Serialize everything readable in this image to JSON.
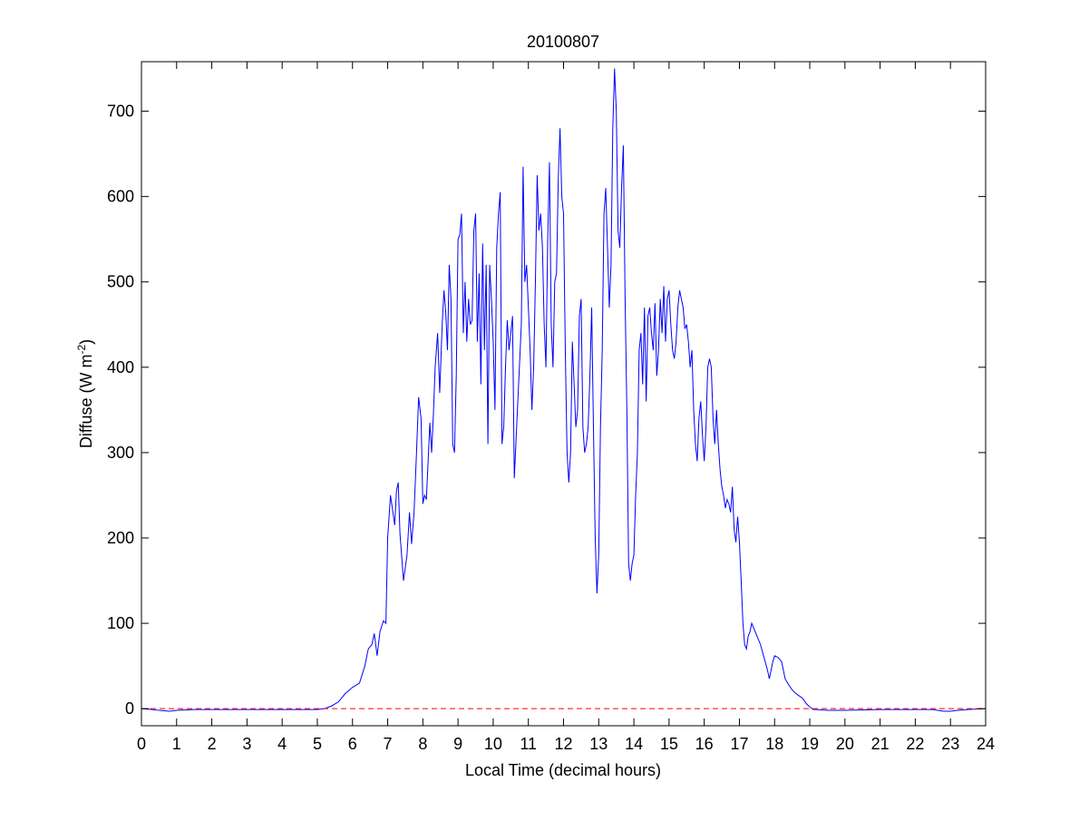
{
  "chart_data": {
    "type": "line",
    "title": "20100807",
    "xlabel": "Local Time (decimal hours)",
    "ylabel": "Diffuse (W m^-2)",
    "ylabel_parts": {
      "main": "Diffuse (W m",
      "sup": "-2",
      "close": ")"
    },
    "xlim": [
      0,
      24
    ],
    "ylim": [
      -20,
      758
    ],
    "xticks": [
      0,
      1,
      2,
      3,
      4,
      5,
      6,
      7,
      8,
      9,
      10,
      11,
      12,
      13,
      14,
      15,
      16,
      17,
      18,
      19,
      20,
      21,
      22,
      23,
      24
    ],
    "yticks": [
      0,
      100,
      200,
      300,
      400,
      500,
      600,
      700
    ],
    "grid": false,
    "series": [
      {
        "color": "#0000ff",
        "style": "solid",
        "points": [
          [
            0.0,
            0
          ],
          [
            0.3,
            -1
          ],
          [
            0.5,
            -2
          ],
          [
            0.8,
            -3
          ],
          [
            1.0,
            -2
          ],
          [
            1.5,
            -1
          ],
          [
            2.0,
            -1
          ],
          [
            3.0,
            -1
          ],
          [
            4.0,
            -1
          ],
          [
            5.0,
            -1
          ],
          [
            5.2,
            0
          ],
          [
            5.4,
            3
          ],
          [
            5.6,
            8
          ],
          [
            5.8,
            18
          ],
          [
            6.0,
            25
          ],
          [
            6.2,
            30
          ],
          [
            6.35,
            50
          ],
          [
            6.45,
            70
          ],
          [
            6.55,
            75
          ],
          [
            6.62,
            88
          ],
          [
            6.7,
            62
          ],
          [
            6.78,
            90
          ],
          [
            6.88,
            103
          ],
          [
            6.95,
            100
          ],
          [
            7.0,
            200
          ],
          [
            7.08,
            250
          ],
          [
            7.15,
            230
          ],
          [
            7.2,
            215
          ],
          [
            7.25,
            255
          ],
          [
            7.3,
            265
          ],
          [
            7.35,
            205
          ],
          [
            7.45,
            150
          ],
          [
            7.55,
            180
          ],
          [
            7.62,
            230
          ],
          [
            7.68,
            193
          ],
          [
            7.75,
            230
          ],
          [
            7.82,
            300
          ],
          [
            7.88,
            365
          ],
          [
            7.95,
            340
          ],
          [
            8.0,
            240
          ],
          [
            8.05,
            250
          ],
          [
            8.1,
            245
          ],
          [
            8.15,
            290
          ],
          [
            8.2,
            335
          ],
          [
            8.25,
            300
          ],
          [
            8.3,
            345
          ],
          [
            8.35,
            400
          ],
          [
            8.42,
            440
          ],
          [
            8.48,
            370
          ],
          [
            8.55,
            450
          ],
          [
            8.6,
            490
          ],
          [
            8.65,
            465
          ],
          [
            8.7,
            420
          ],
          [
            8.75,
            520
          ],
          [
            8.8,
            480
          ],
          [
            8.85,
            310
          ],
          [
            8.9,
            300
          ],
          [
            8.95,
            390
          ],
          [
            9.0,
            550
          ],
          [
            9.05,
            555
          ],
          [
            9.1,
            580
          ],
          [
            9.15,
            440
          ],
          [
            9.2,
            500
          ],
          [
            9.25,
            430
          ],
          [
            9.3,
            480
          ],
          [
            9.35,
            450
          ],
          [
            9.4,
            455
          ],
          [
            9.45,
            560
          ],
          [
            9.5,
            580
          ],
          [
            9.55,
            430
          ],
          [
            9.6,
            510
          ],
          [
            9.65,
            380
          ],
          [
            9.7,
            545
          ],
          [
            9.75,
            420
          ],
          [
            9.8,
            520
          ],
          [
            9.85,
            310
          ],
          [
            9.9,
            520
          ],
          [
            9.95,
            480
          ],
          [
            10.0,
            430
          ],
          [
            10.05,
            350
          ],
          [
            10.1,
            540
          ],
          [
            10.15,
            580
          ],
          [
            10.2,
            605
          ],
          [
            10.25,
            310
          ],
          [
            10.3,
            330
          ],
          [
            10.35,
            400
          ],
          [
            10.4,
            455
          ],
          [
            10.45,
            420
          ],
          [
            10.55,
            460
          ],
          [
            10.6,
            270
          ],
          [
            10.7,
            360
          ],
          [
            10.8,
            450
          ],
          [
            10.85,
            635
          ],
          [
            10.9,
            500
          ],
          [
            10.95,
            520
          ],
          [
            11.0,
            470
          ],
          [
            11.05,
            420
          ],
          [
            11.1,
            350
          ],
          [
            11.15,
            400
          ],
          [
            11.2,
            500
          ],
          [
            11.25,
            625
          ],
          [
            11.3,
            560
          ],
          [
            11.35,
            580
          ],
          [
            11.4,
            540
          ],
          [
            11.45,
            450
          ],
          [
            11.5,
            400
          ],
          [
            11.55,
            550
          ],
          [
            11.6,
            640
          ],
          [
            11.65,
            450
          ],
          [
            11.7,
            400
          ],
          [
            11.75,
            500
          ],
          [
            11.8,
            510
          ],
          [
            11.85,
            620
          ],
          [
            11.9,
            680
          ],
          [
            11.95,
            600
          ],
          [
            12.0,
            580
          ],
          [
            12.05,
            420
          ],
          [
            12.1,
            300
          ],
          [
            12.15,
            265
          ],
          [
            12.2,
            300
          ],
          [
            12.25,
            430
          ],
          [
            12.3,
            380
          ],
          [
            12.35,
            330
          ],
          [
            12.4,
            350
          ],
          [
            12.45,
            460
          ],
          [
            12.5,
            480
          ],
          [
            12.55,
            330
          ],
          [
            12.6,
            300
          ],
          [
            12.65,
            310
          ],
          [
            12.7,
            330
          ],
          [
            12.75,
            390
          ],
          [
            12.8,
            470
          ],
          [
            12.85,
            330
          ],
          [
            12.9,
            200
          ],
          [
            12.95,
            135
          ],
          [
            13.0,
            180
          ],
          [
            13.05,
            330
          ],
          [
            13.1,
            420
          ],
          [
            13.15,
            580
          ],
          [
            13.2,
            610
          ],
          [
            13.25,
            540
          ],
          [
            13.3,
            470
          ],
          [
            13.35,
            520
          ],
          [
            13.4,
            680
          ],
          [
            13.45,
            750
          ],
          [
            13.5,
            700
          ],
          [
            13.55,
            560
          ],
          [
            13.6,
            540
          ],
          [
            13.65,
            610
          ],
          [
            13.7,
            660
          ],
          [
            13.75,
            480
          ],
          [
            13.8,
            350
          ],
          [
            13.85,
            170
          ],
          [
            13.9,
            150
          ],
          [
            13.95,
            170
          ],
          [
            14.0,
            180
          ],
          [
            14.05,
            250
          ],
          [
            14.1,
            300
          ],
          [
            14.15,
            420
          ],
          [
            14.2,
            440
          ],
          [
            14.25,
            380
          ],
          [
            14.3,
            470
          ],
          [
            14.35,
            360
          ],
          [
            14.4,
            460
          ],
          [
            14.45,
            470
          ],
          [
            14.5,
            440
          ],
          [
            14.55,
            420
          ],
          [
            14.6,
            475
          ],
          [
            14.65,
            390
          ],
          [
            14.7,
            420
          ],
          [
            14.75,
            480
          ],
          [
            14.8,
            440
          ],
          [
            14.85,
            495
          ],
          [
            14.9,
            430
          ],
          [
            14.95,
            480
          ],
          [
            15.0,
            490
          ],
          [
            15.05,
            450
          ],
          [
            15.1,
            420
          ],
          [
            15.15,
            410
          ],
          [
            15.2,
            430
          ],
          [
            15.25,
            470
          ],
          [
            15.3,
            490
          ],
          [
            15.35,
            480
          ],
          [
            15.4,
            470
          ],
          [
            15.45,
            445
          ],
          [
            15.5,
            450
          ],
          [
            15.55,
            430
          ],
          [
            15.6,
            400
          ],
          [
            15.65,
            420
          ],
          [
            15.7,
            350
          ],
          [
            15.75,
            310
          ],
          [
            15.8,
            290
          ],
          [
            15.85,
            340
          ],
          [
            15.9,
            360
          ],
          [
            15.95,
            320
          ],
          [
            16.0,
            290
          ],
          [
            16.05,
            330
          ],
          [
            16.1,
            400
          ],
          [
            16.15,
            410
          ],
          [
            16.2,
            400
          ],
          [
            16.25,
            340
          ],
          [
            16.3,
            310
          ],
          [
            16.35,
            350
          ],
          [
            16.4,
            310
          ],
          [
            16.45,
            280
          ],
          [
            16.5,
            260
          ],
          [
            16.55,
            250
          ],
          [
            16.6,
            235
          ],
          [
            16.65,
            245
          ],
          [
            16.7,
            240
          ],
          [
            16.75,
            230
          ],
          [
            16.8,
            260
          ],
          [
            16.85,
            210
          ],
          [
            16.9,
            195
          ],
          [
            16.95,
            225
          ],
          [
            17.0,
            195
          ],
          [
            17.05,
            150
          ],
          [
            17.1,
            100
          ],
          [
            17.15,
            75
          ],
          [
            17.2,
            70
          ],
          [
            17.25,
            85
          ],
          [
            17.3,
            90
          ],
          [
            17.35,
            100
          ],
          [
            17.4,
            95
          ],
          [
            17.5,
            85
          ],
          [
            17.6,
            75
          ],
          [
            17.7,
            60
          ],
          [
            17.8,
            45
          ],
          [
            17.85,
            35
          ],
          [
            17.9,
            45
          ],
          [
            17.95,
            55
          ],
          [
            18.0,
            62
          ],
          [
            18.1,
            60
          ],
          [
            18.2,
            55
          ],
          [
            18.25,
            45
          ],
          [
            18.3,
            35
          ],
          [
            18.4,
            28
          ],
          [
            18.5,
            22
          ],
          [
            18.6,
            18
          ],
          [
            18.7,
            15
          ],
          [
            18.8,
            12
          ],
          [
            18.9,
            6
          ],
          [
            19.0,
            2
          ],
          [
            19.1,
            -1
          ],
          [
            19.2,
            -1
          ],
          [
            19.5,
            -2
          ],
          [
            20.0,
            -2
          ],
          [
            21.0,
            -1
          ],
          [
            22.0,
            -1
          ],
          [
            22.5,
            -1
          ],
          [
            22.8,
            -3
          ],
          [
            23.0,
            -3
          ],
          [
            23.2,
            -2
          ],
          [
            23.5,
            -1
          ],
          [
            24.0,
            0
          ]
        ]
      },
      {
        "color": "#ff0000",
        "style": "dashed",
        "points": [
          [
            0,
            0
          ],
          [
            24,
            0
          ]
        ]
      }
    ]
  }
}
